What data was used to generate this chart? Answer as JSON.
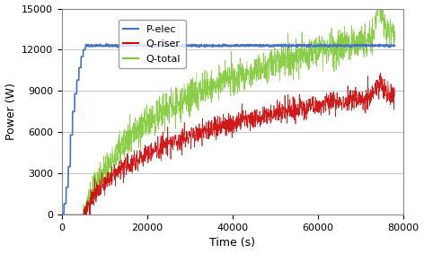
{
  "title": "",
  "xlabel": "Time (s)",
  "ylabel": "Power (W)",
  "xlim": [
    0,
    80000
  ],
  "ylim": [
    0,
    15000
  ],
  "xticks": [
    0,
    20000,
    40000,
    60000,
    80000
  ],
  "yticks": [
    0,
    3000,
    6000,
    9000,
    12000,
    15000
  ],
  "legend_labels": [
    "P-elec",
    "Q-riser",
    "Q-total"
  ],
  "colors": {
    "P-elec": "#4472C4",
    "Q-riser": "#CC0000",
    "Q-total": "#7DC832"
  },
  "background_color": "#FFFFFF",
  "grid_color": "#BEBEBE",
  "p_elec_steady": 12300,
  "seed": 42,
  "figsize": [
    4.72,
    2.83
  ],
  "dpi": 100
}
